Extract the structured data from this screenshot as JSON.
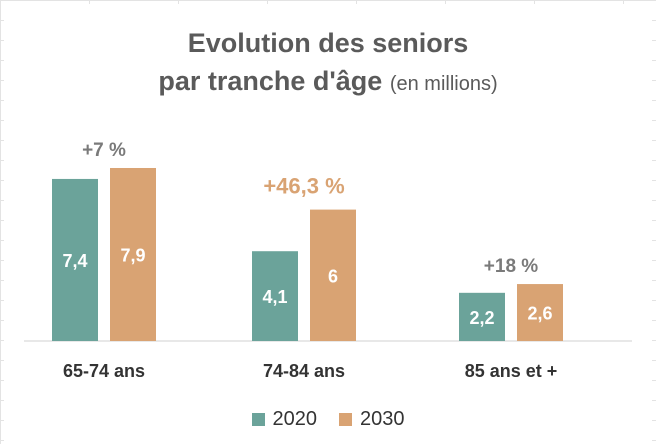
{
  "chart_data": {
    "type": "bar",
    "title": "Evolution des seniors",
    "title_line2": "par tranche d'âge",
    "title_unit": "(en millions)",
    "categories": [
      "65-74 ans",
      "74-84 ans",
      "85 ans et +"
    ],
    "series": [
      {
        "name": "2020",
        "color": "#6ba39a",
        "values": [
          7.4,
          4.1,
          2.2
        ],
        "labels": [
          "7,4",
          "4,1",
          "2,2"
        ]
      },
      {
        "name": "2030",
        "color": "#d9a373",
        "values": [
          7.9,
          6.0,
          2.6
        ],
        "labels": [
          "7,9",
          "6",
          "2,6"
        ]
      }
    ],
    "annotations": [
      {
        "text": "+7 %",
        "color": "#7a7a7a",
        "highlight": false
      },
      {
        "text": "+46,3 %",
        "color": "#d9a373",
        "highlight": true
      },
      {
        "text": "+18 %",
        "color": "#7a7a7a",
        "highlight": false
      }
    ],
    "ylim": [
      0,
      9
    ],
    "legend_position": "bottom",
    "grid": false
  }
}
